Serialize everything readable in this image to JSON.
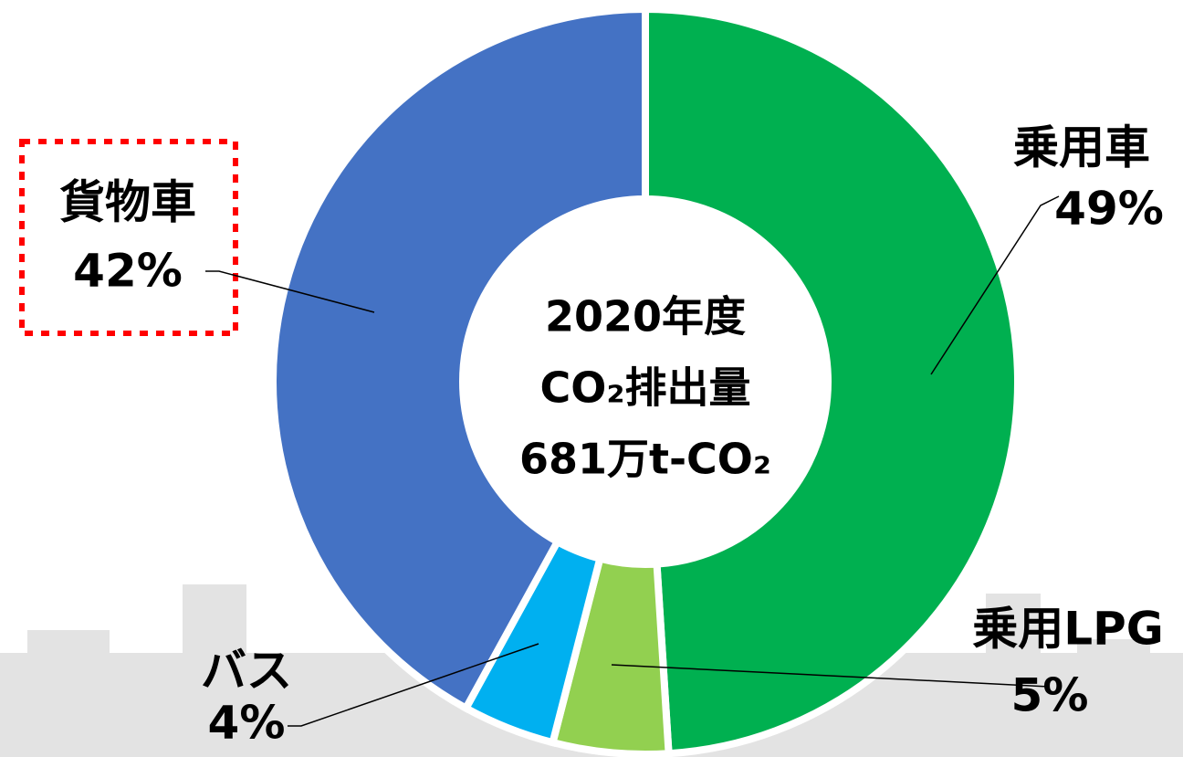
{
  "chart_data": {
    "type": "pie",
    "donut": true,
    "categories": [
      "乗用車",
      "乗用LPG",
      "バス",
      "貨物車"
    ],
    "values": [
      49,
      5,
      4,
      42
    ],
    "value_labels": [
      "49%",
      "5%",
      "4%",
      "42%"
    ],
    "colors": [
      "#00b050",
      "#92d050",
      "#00b0f0",
      "#4472c4"
    ],
    "center_text": [
      "2020年度",
      "CO₂排出量",
      "681万t-CO₂"
    ],
    "highlighted_category": 3
  }
}
